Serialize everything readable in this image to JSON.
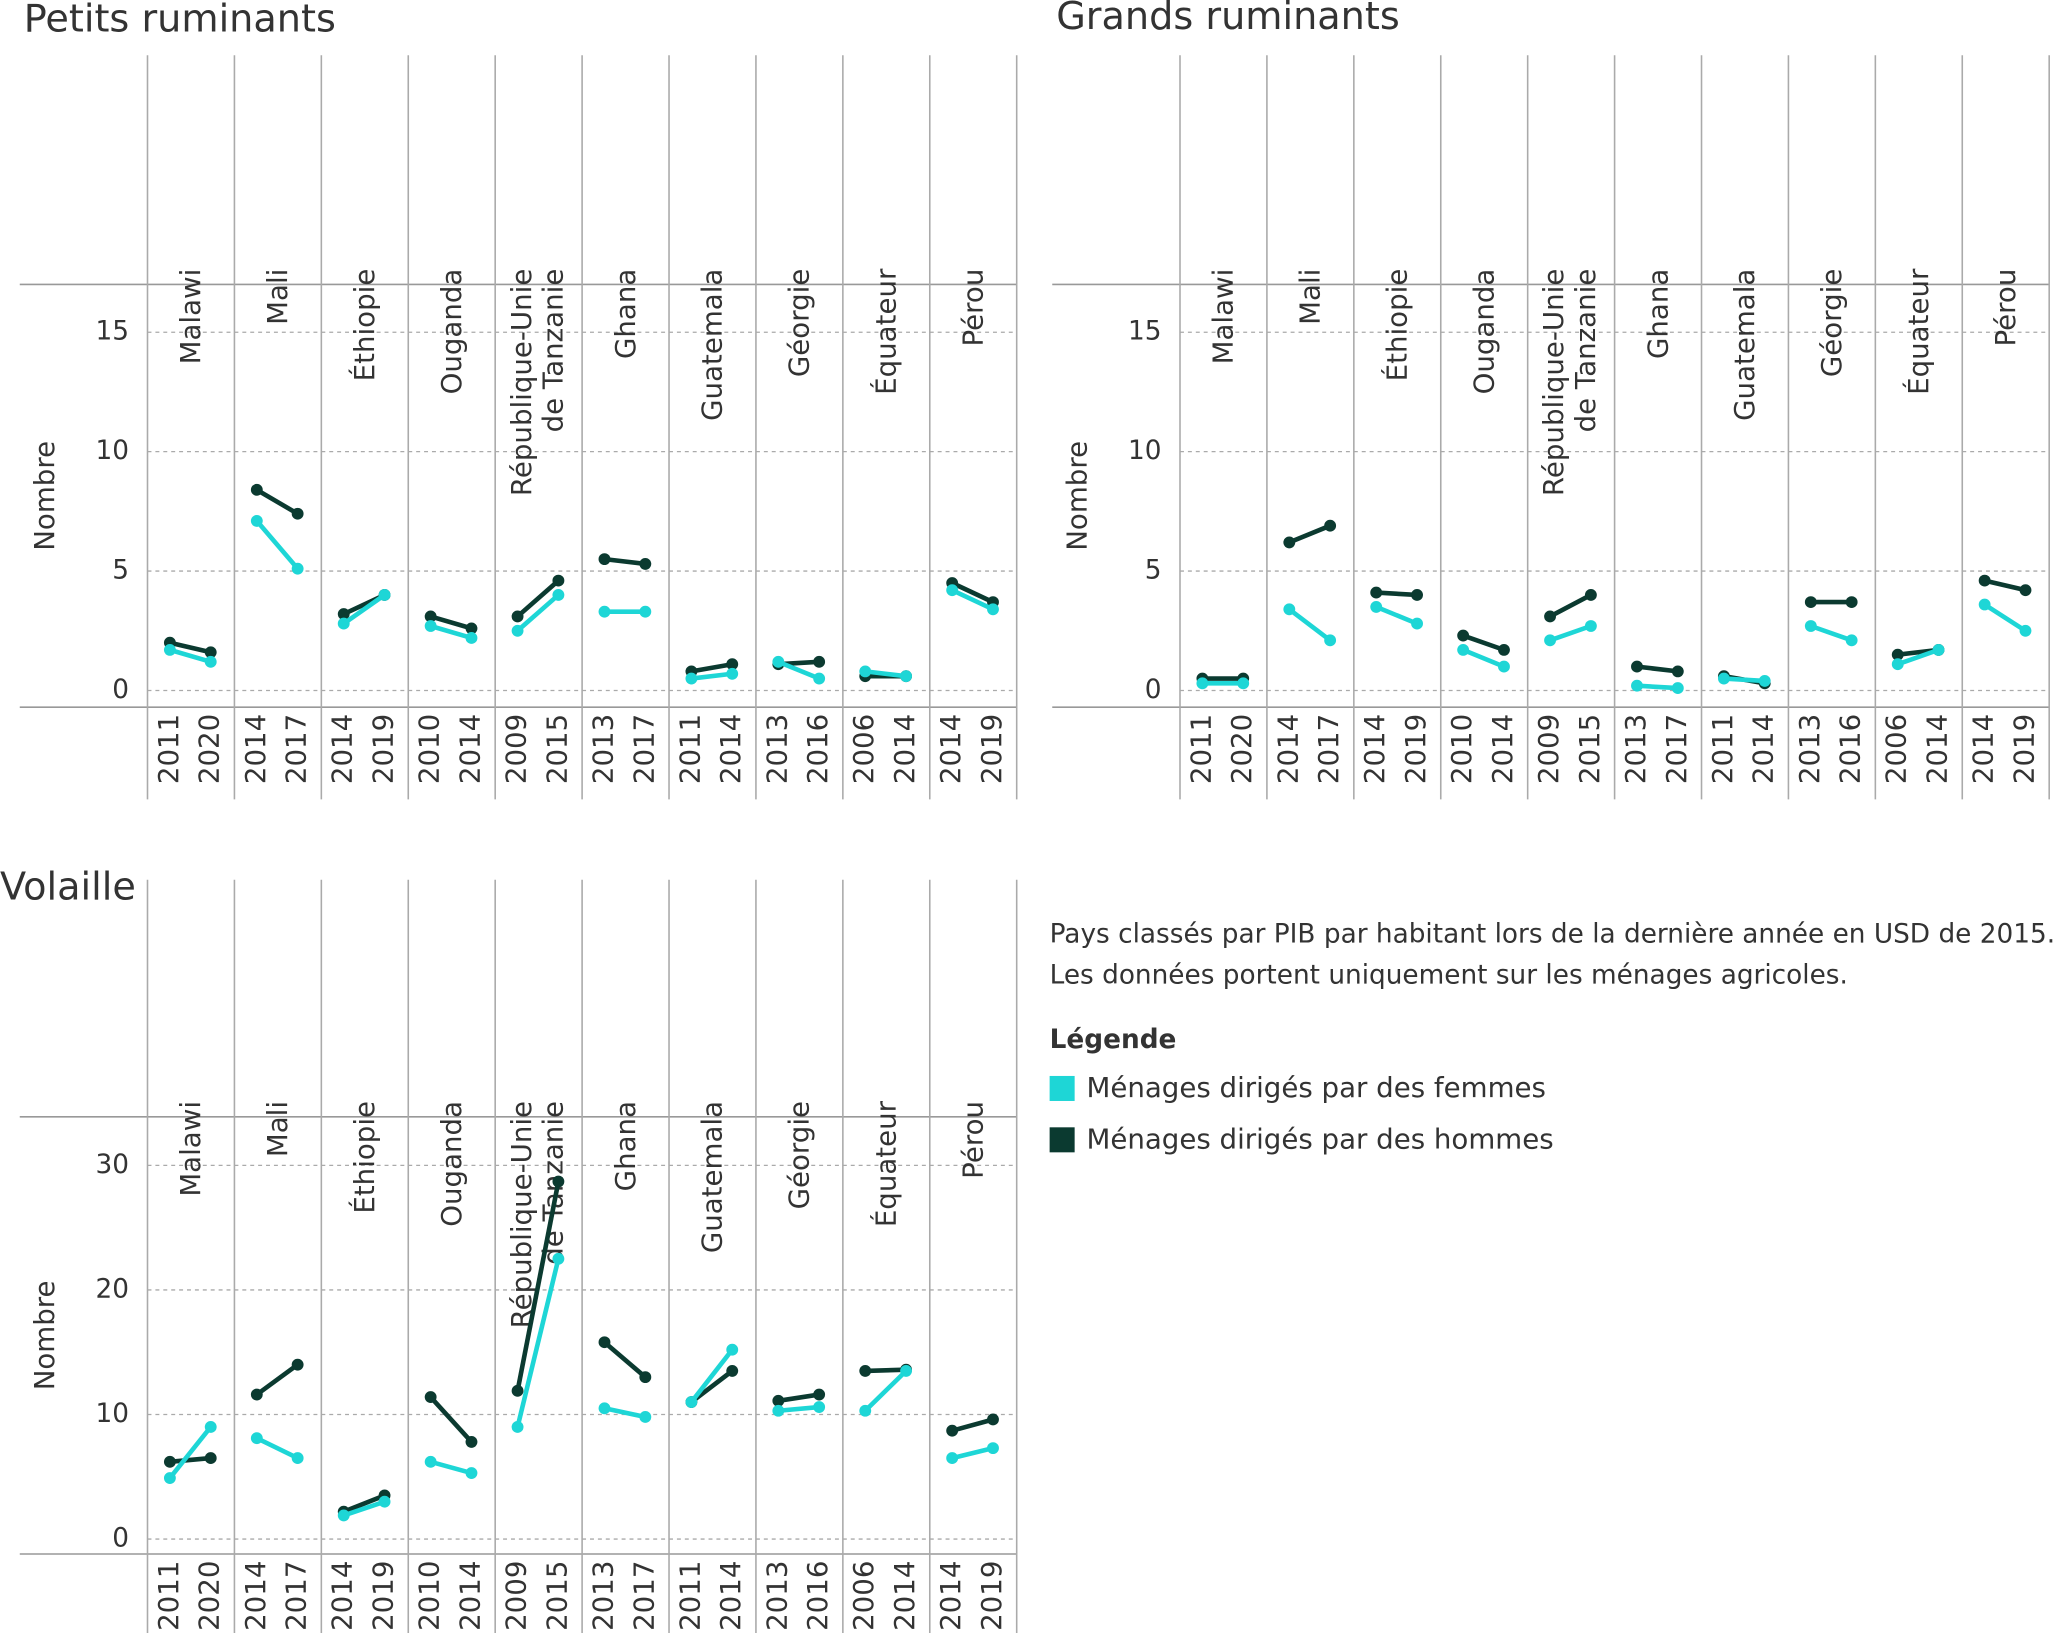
{
  "chart_data": [
    {
      "type": "line",
      "title": "Petits ruminants",
      "y_label": "Nombre",
      "groups": [
        "Malawi",
        "Mali",
        "Éthiopie",
        "Ouganda",
        "République-Unie de Tanzanie",
        "Ghana",
        "Guatemala",
        "Géorgie",
        "Équateur",
        "Pérou"
      ],
      "categories": [
        "2011",
        "2020",
        "2014",
        "2017",
        "2014",
        "2019",
        "2010",
        "2014",
        "2009",
        "2015",
        "2013",
        "2017",
        "2011",
        "2014",
        "2013",
        "2016",
        "2006",
        "2014",
        "2014",
        "2019"
      ],
      "series": [
        {
          "color": "#1ed6d6",
          "values": [
            1.7,
            1.2,
            7.1,
            5.1,
            2.8,
            4.0,
            2.7,
            2.2,
            2.5,
            4.0,
            3.3,
            3.3,
            0.5,
            0.7,
            1.2,
            0.5,
            0.8,
            0.6,
            4.2,
            3.4
          ]
        },
        {
          "color": "#0b3a30",
          "values": [
            2.0,
            1.6,
            8.4,
            7.4,
            3.2,
            4.0,
            3.1,
            2.6,
            3.1,
            4.6,
            5.5,
            5.3,
            0.8,
            1.1,
            1.1,
            1.2,
            0.6,
            0.6,
            4.5,
            3.7
          ]
        }
      ],
      "ylim": [
        -0.7,
        17
      ],
      "yticks": [
        0,
        5,
        10,
        15
      ],
      "grid": true
    },
    {
      "type": "line",
      "title": "Grands ruminants",
      "y_label": "Nombre",
      "groups": [
        "Malawi",
        "Mali",
        "Éthiopie",
        "Ouganda",
        "République-Unie de Tanzanie",
        "Ghana",
        "Guatemala",
        "Géorgie",
        "Équateur",
        "Pérou"
      ],
      "categories": [
        "2011",
        "2020",
        "2014",
        "2017",
        "2014",
        "2019",
        "2010",
        "2014",
        "2009",
        "2015",
        "2013",
        "2017",
        "2011",
        "2014",
        "2013",
        "2016",
        "2006",
        "2014",
        "2014",
        "2019"
      ],
      "series": [
        {
          "color": "#1ed6d6",
          "values": [
            0.3,
            0.3,
            3.4,
            2.1,
            3.5,
            2.8,
            1.7,
            1.0,
            2.1,
            2.7,
            0.2,
            0.1,
            0.5,
            0.4,
            2.7,
            2.1,
            1.1,
            1.7,
            3.6,
            2.5
          ]
        },
        {
          "color": "#0b3a30",
          "values": [
            0.5,
            0.5,
            6.2,
            6.9,
            4.1,
            4.0,
            2.3,
            1.7,
            3.1,
            4.0,
            1.0,
            0.8,
            0.6,
            0.3,
            3.7,
            3.7,
            1.5,
            1.7,
            4.6,
            4.2
          ]
        }
      ],
      "ylim": [
        -0.7,
        17
      ],
      "yticks": [
        0,
        5,
        10,
        15
      ],
      "grid": true
    },
    {
      "type": "line",
      "title": "Volaille",
      "y_label": "Nombre",
      "groups": [
        "Malawi",
        "Mali",
        "Éthiopie",
        "Ouganda",
        "République-Unie de Tanzanie",
        "Ghana",
        "Guatemala",
        "Géorgie",
        "Équateur",
        "Pérou"
      ],
      "categories": [
        "2011",
        "2020",
        "2014",
        "2017",
        "2014",
        "2019",
        "2010",
        "2014",
        "2009",
        "2015",
        "2013",
        "2017",
        "2011",
        "2014",
        "2013",
        "2016",
        "2006",
        "2014",
        "2014",
        "2019"
      ],
      "series": [
        {
          "color": "#1ed6d6",
          "values": [
            4.9,
            9.0,
            8.1,
            6.5,
            1.9,
            3.0,
            6.2,
            5.3,
            9.0,
            22.5,
            10.5,
            9.8,
            11.0,
            15.2,
            10.3,
            10.6,
            10.3,
            13.5,
            6.5,
            7.3
          ]
        },
        {
          "color": "#0b3a30",
          "values": [
            6.2,
            6.5,
            11.6,
            14.0,
            2.2,
            3.5,
            11.4,
            7.8,
            11.9,
            28.7,
            15.8,
            13.0,
            11.0,
            13.5,
            11.1,
            11.6,
            13.5,
            13.6,
            8.7,
            9.6
          ]
        }
      ],
      "ylim": [
        -1.2,
        33.9
      ],
      "yticks": [
        0,
        10,
        20,
        30
      ],
      "grid": true
    }
  ],
  "notes": [
    "Pays classés par PIB par habitant lors de la dernière année en USD de 2015.",
    "Les données portent uniquement sur les ménages agricoles."
  ],
  "legend": {
    "title": "Légende",
    "items": [
      {
        "name": "Ménages dirigés par des femmes",
        "color": "#1ed6d6"
      },
      {
        "name": "Ménages dirigés par des hommes",
        "color": "#0b3a30"
      }
    ]
  }
}
